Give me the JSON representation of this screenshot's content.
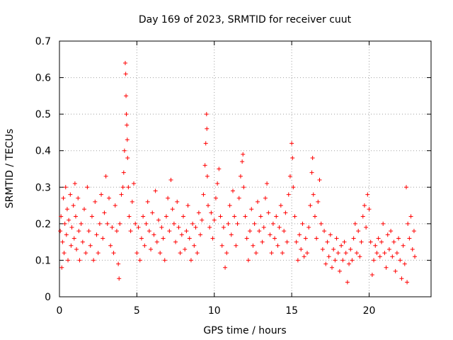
{
  "chart_data": {
    "type": "scatter",
    "title": "Day 169 of 2023, SRMTID for receiver cuut",
    "xlabel": "GPS time / hours",
    "ylabel": "SRMTID / TECUs",
    "xlim": [
      0,
      24
    ],
    "ylim": [
      0,
      0.7
    ],
    "x_ticks": [
      0,
      5,
      10,
      15,
      20
    ],
    "y_ticks": [
      0,
      0.1,
      0.2,
      0.3,
      0.4,
      0.5,
      0.6,
      0.7
    ],
    "x_tick_labels": [
      "0",
      "5",
      "10",
      "15",
      "20"
    ],
    "y_tick_labels": [
      "0",
      "0.1",
      "0.2",
      "0.3",
      "0.4",
      "0.5",
      "0.6",
      "0.7"
    ],
    "grid": true,
    "marker": "+",
    "color": "#ff0000",
    "series": [
      {
        "name": "SRMTID",
        "points": [
          [
            0.05,
            0.18
          ],
          [
            0.1,
            0.22
          ],
          [
            0.15,
            0.08
          ],
          [
            0.2,
            0.15
          ],
          [
            0.25,
            0.27
          ],
          [
            0.3,
            0.12
          ],
          [
            0.35,
            0.2
          ],
          [
            0.4,
            0.3
          ],
          [
            0.45,
            0.17
          ],
          [
            0.5,
            0.24
          ],
          [
            0.55,
            0.1
          ],
          [
            0.6,
            0.21
          ],
          [
            0.7,
            0.28
          ],
          [
            0.75,
            0.14
          ],
          [
            0.8,
            0.19
          ],
          [
            0.9,
            0.25
          ],
          [
            0.95,
            0.16
          ],
          [
            1.0,
            0.31
          ],
          [
            1.05,
            0.22
          ],
          [
            1.1,
            0.13
          ],
          [
            1.2,
            0.27
          ],
          [
            1.25,
            0.18
          ],
          [
            1.3,
            0.1
          ],
          [
            1.4,
            0.2
          ],
          [
            1.5,
            0.15
          ],
          [
            1.6,
            0.24
          ],
          [
            1.7,
            0.12
          ],
          [
            1.8,
            0.3
          ],
          [
            1.9,
            0.18
          ],
          [
            2.0,
            0.14
          ],
          [
            2.1,
            0.22
          ],
          [
            2.2,
            0.1
          ],
          [
            2.3,
            0.26
          ],
          [
            2.4,
            0.17
          ],
          [
            2.5,
            0.12
          ],
          [
            2.6,
            0.2
          ],
          [
            2.7,
            0.28
          ],
          [
            2.8,
            0.16
          ],
          [
            2.9,
            0.23
          ],
          [
            3.0,
            0.33
          ],
          [
            3.1,
            0.2
          ],
          [
            3.2,
            0.27
          ],
          [
            3.3,
            0.14
          ],
          [
            3.4,
            0.19
          ],
          [
            3.5,
            0.12
          ],
          [
            3.6,
            0.25
          ],
          [
            3.7,
            0.18
          ],
          [
            3.8,
            0.09
          ],
          [
            3.85,
            0.05
          ],
          [
            3.9,
            0.2
          ],
          [
            4.0,
            0.28
          ],
          [
            4.1,
            0.3
          ],
          [
            4.15,
            0.34
          ],
          [
            4.2,
            0.4
          ],
          [
            4.25,
            0.64
          ],
          [
            4.28,
            0.61
          ],
          [
            4.3,
            0.55
          ],
          [
            4.32,
            0.5
          ],
          [
            4.35,
            0.47
          ],
          [
            4.38,
            0.43
          ],
          [
            4.4,
            0.38
          ],
          [
            4.45,
            0.3
          ],
          [
            4.5,
            0.22
          ],
          [
            4.6,
            0.18
          ],
          [
            4.7,
            0.26
          ],
          [
            4.8,
            0.31
          ],
          [
            4.9,
            0.2
          ],
          [
            5.0,
            0.12
          ],
          [
            5.1,
            0.19
          ],
          [
            5.2,
            0.1
          ],
          [
            5.3,
            0.16
          ],
          [
            5.4,
            0.22
          ],
          [
            5.5,
            0.14
          ],
          [
            5.6,
            0.2
          ],
          [
            5.7,
            0.26
          ],
          [
            5.8,
            0.18
          ],
          [
            5.9,
            0.13
          ],
          [
            6.0,
            0.23
          ],
          [
            6.1,
            0.17
          ],
          [
            6.2,
            0.29
          ],
          [
            6.3,
            0.15
          ],
          [
            6.4,
            0.21
          ],
          [
            6.5,
            0.12
          ],
          [
            6.6,
            0.19
          ],
          [
            6.7,
            0.16
          ],
          [
            6.8,
            0.1
          ],
          [
            6.9,
            0.22
          ],
          [
            7.0,
            0.27
          ],
          [
            7.1,
            0.18
          ],
          [
            7.2,
            0.32
          ],
          [
            7.3,
            0.24
          ],
          [
            7.4,
            0.2
          ],
          [
            7.5,
            0.15
          ],
          [
            7.6,
            0.26
          ],
          [
            7.7,
            0.19
          ],
          [
            7.8,
            0.12
          ],
          [
            7.9,
            0.17
          ],
          [
            8.0,
            0.22
          ],
          [
            8.1,
            0.13
          ],
          [
            8.2,
            0.18
          ],
          [
            8.3,
            0.25
          ],
          [
            8.4,
            0.16
          ],
          [
            8.5,
            0.1
          ],
          [
            8.6,
            0.2
          ],
          [
            8.7,
            0.14
          ],
          [
            8.8,
            0.19
          ],
          [
            8.9,
            0.12
          ],
          [
            9.0,
            0.23
          ],
          [
            9.1,
            0.17
          ],
          [
            9.2,
            0.21
          ],
          [
            9.3,
            0.28
          ],
          [
            9.4,
            0.36
          ],
          [
            9.45,
            0.42
          ],
          [
            9.5,
            0.5
          ],
          [
            9.52,
            0.46
          ],
          [
            9.55,
            0.33
          ],
          [
            9.6,
            0.25
          ],
          [
            9.7,
            0.19
          ],
          [
            9.8,
            0.23
          ],
          [
            9.9,
            0.16
          ],
          [
            10.0,
            0.21
          ],
          [
            10.1,
            0.27
          ],
          [
            10.2,
            0.31
          ],
          [
            10.3,
            0.35
          ],
          [
            10.4,
            0.22
          ],
          [
            10.5,
            0.14
          ],
          [
            10.6,
            0.19
          ],
          [
            10.7,
            0.08
          ],
          [
            10.8,
            0.12
          ],
          [
            10.9,
            0.2
          ],
          [
            11.0,
            0.25
          ],
          [
            11.1,
            0.17
          ],
          [
            11.2,
            0.29
          ],
          [
            11.3,
            0.22
          ],
          [
            11.4,
            0.14
          ],
          [
            11.5,
            0.2
          ],
          [
            11.6,
            0.27
          ],
          [
            11.7,
            0.33
          ],
          [
            11.8,
            0.37
          ],
          [
            11.85,
            0.39
          ],
          [
            11.9,
            0.3
          ],
          [
            12.0,
            0.22
          ],
          [
            12.1,
            0.16
          ],
          [
            12.2,
            0.1
          ],
          [
            12.3,
            0.18
          ],
          [
            12.4,
            0.24
          ],
          [
            12.5,
            0.14
          ],
          [
            12.6,
            0.2
          ],
          [
            12.7,
            0.12
          ],
          [
            12.8,
            0.26
          ],
          [
            12.9,
            0.18
          ],
          [
            13.0,
            0.22
          ],
          [
            13.1,
            0.15
          ],
          [
            13.2,
            0.19
          ],
          [
            13.3,
            0.27
          ],
          [
            13.4,
            0.31
          ],
          [
            13.5,
            0.23
          ],
          [
            13.6,
            0.17
          ],
          [
            13.7,
            0.12
          ],
          [
            13.8,
            0.2
          ],
          [
            13.9,
            0.16
          ],
          [
            14.0,
            0.22
          ],
          [
            14.1,
            0.14
          ],
          [
            14.2,
            0.19
          ],
          [
            14.3,
            0.25
          ],
          [
            14.4,
            0.12
          ],
          [
            14.5,
            0.18
          ],
          [
            14.6,
            0.23
          ],
          [
            14.7,
            0.15
          ],
          [
            14.8,
            0.28
          ],
          [
            14.9,
            0.33
          ],
          [
            15.0,
            0.42
          ],
          [
            15.05,
            0.38
          ],
          [
            15.1,
            0.3
          ],
          [
            15.2,
            0.22
          ],
          [
            15.3,
            0.15
          ],
          [
            15.4,
            0.1
          ],
          [
            15.5,
            0.17
          ],
          [
            15.6,
            0.13
          ],
          [
            15.7,
            0.2
          ],
          [
            15.8,
            0.11
          ],
          [
            15.9,
            0.16
          ],
          [
            16.0,
            0.12
          ],
          [
            16.1,
            0.19
          ],
          [
            16.2,
            0.25
          ],
          [
            16.3,
            0.34
          ],
          [
            16.35,
            0.38
          ],
          [
            16.4,
            0.28
          ],
          [
            16.5,
            0.22
          ],
          [
            16.6,
            0.16
          ],
          [
            16.7,
            0.26
          ],
          [
            16.8,
            0.32
          ],
          [
            16.9,
            0.2
          ],
          [
            17.0,
            0.13
          ],
          [
            17.1,
            0.18
          ],
          [
            17.2,
            0.09
          ],
          [
            17.3,
            0.15
          ],
          [
            17.4,
            0.11
          ],
          [
            17.5,
            0.17
          ],
          [
            17.6,
            0.08
          ],
          [
            17.7,
            0.13
          ],
          [
            17.8,
            0.1
          ],
          [
            17.9,
            0.16
          ],
          [
            18.0,
            0.12
          ],
          [
            18.1,
            0.07
          ],
          [
            18.2,
            0.14
          ],
          [
            18.3,
            0.1
          ],
          [
            18.4,
            0.15
          ],
          [
            18.5,
            0.12
          ],
          [
            18.6,
            0.04
          ],
          [
            18.7,
            0.09
          ],
          [
            18.8,
            0.13
          ],
          [
            18.9,
            0.1
          ],
          [
            19.0,
            0.16
          ],
          [
            19.1,
            0.2
          ],
          [
            19.2,
            0.12
          ],
          [
            19.3,
            0.18
          ],
          [
            19.4,
            0.11
          ],
          [
            19.5,
            0.15
          ],
          [
            19.6,
            0.22
          ],
          [
            19.7,
            0.25
          ],
          [
            19.8,
            0.19
          ],
          [
            19.9,
            0.28
          ],
          [
            20.0,
            0.24
          ],
          [
            20.1,
            0.15
          ],
          [
            20.2,
            0.06
          ],
          [
            20.3,
            0.1
          ],
          [
            20.4,
            0.14
          ],
          [
            20.5,
            0.12
          ],
          [
            20.6,
            0.16
          ],
          [
            20.7,
            0.11
          ],
          [
            20.8,
            0.15
          ],
          [
            20.9,
            0.2
          ],
          [
            21.0,
            0.12
          ],
          [
            21.1,
            0.08
          ],
          [
            21.2,
            0.17
          ],
          [
            21.3,
            0.13
          ],
          [
            21.4,
            0.18
          ],
          [
            21.5,
            0.11
          ],
          [
            21.6,
            0.15
          ],
          [
            21.7,
            0.07
          ],
          [
            21.8,
            0.12
          ],
          [
            21.9,
            0.16
          ],
          [
            22.0,
            0.1
          ],
          [
            22.1,
            0.05
          ],
          [
            22.2,
            0.14
          ],
          [
            22.3,
            0.09
          ],
          [
            22.4,
            0.3
          ],
          [
            22.45,
            0.04
          ],
          [
            22.5,
            0.2
          ],
          [
            22.6,
            0.16
          ],
          [
            22.7,
            0.22
          ],
          [
            22.8,
            0.13
          ],
          [
            22.9,
            0.18
          ],
          [
            22.95,
            0.11
          ]
        ]
      }
    ]
  }
}
